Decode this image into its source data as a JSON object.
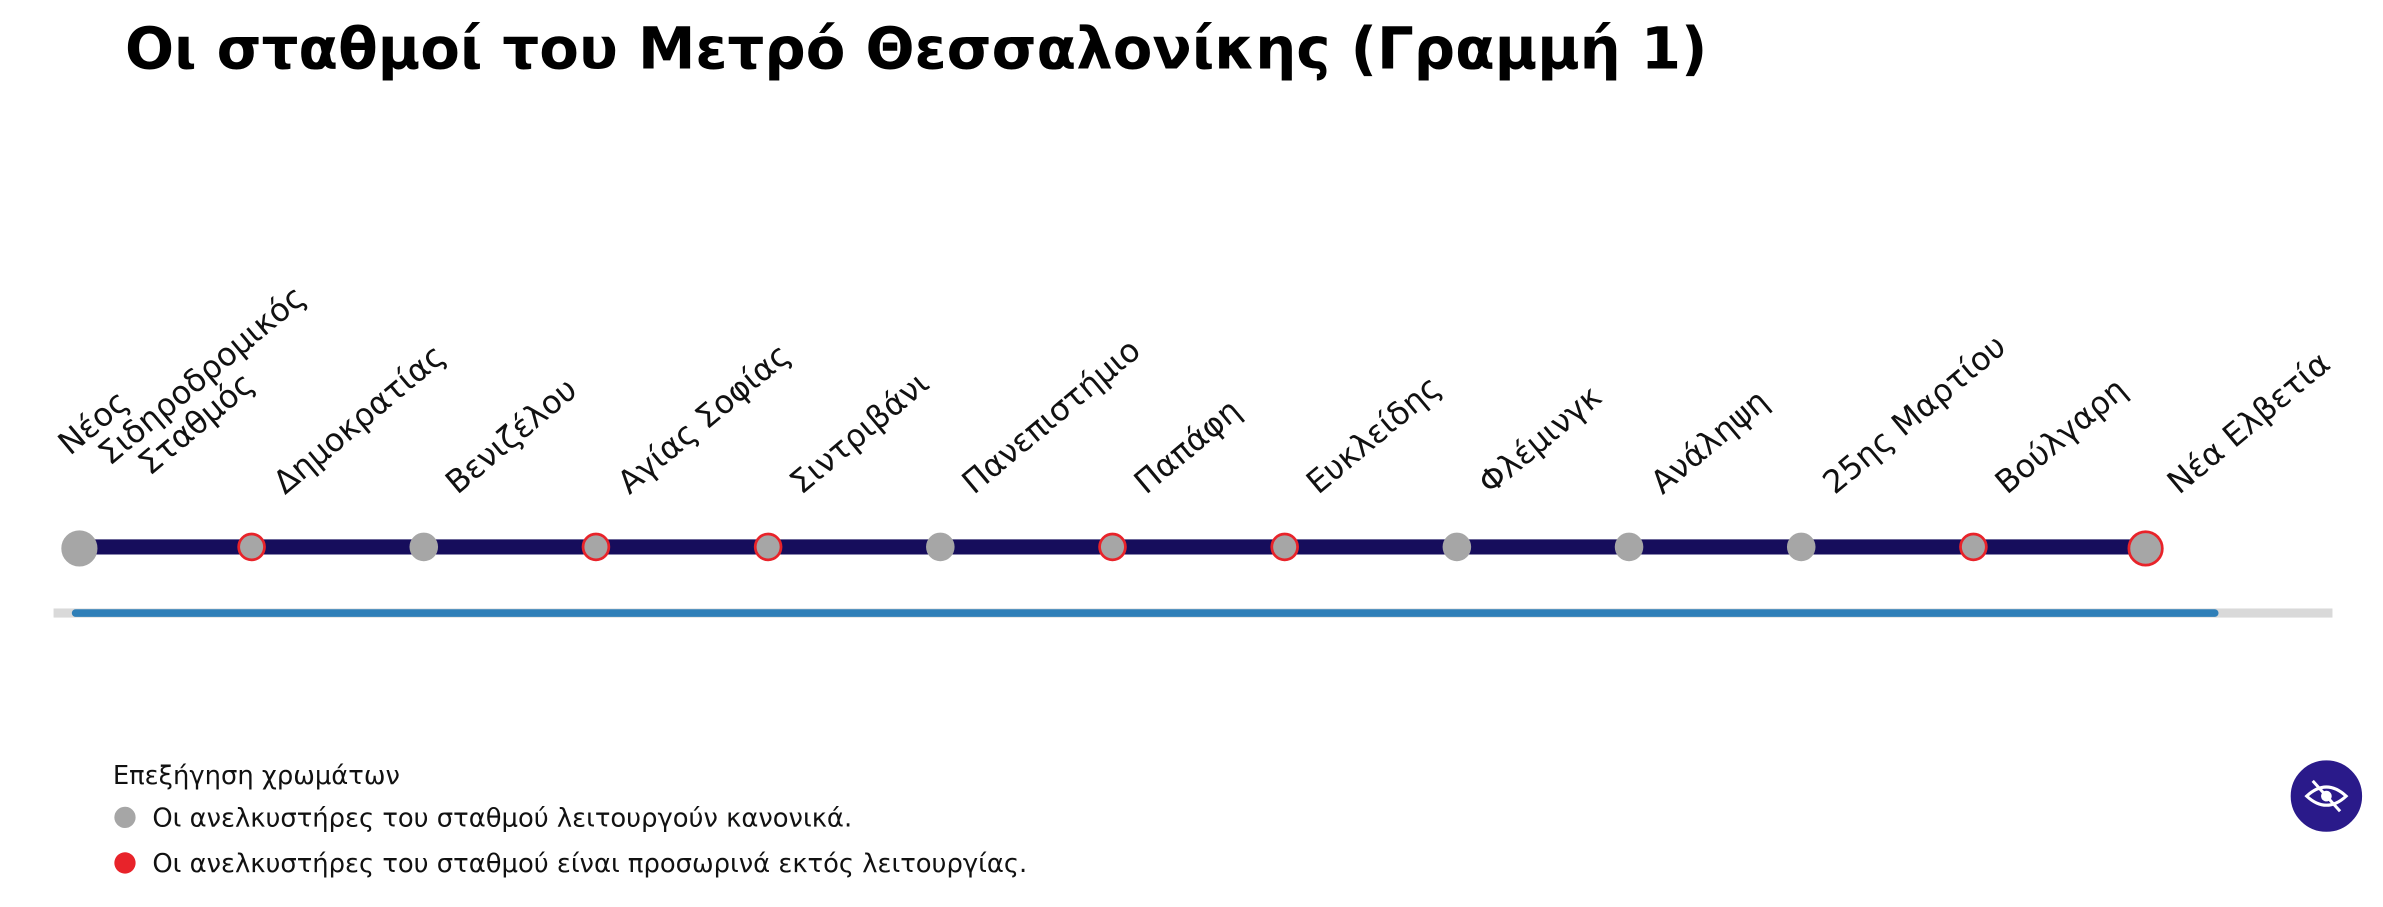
{
  "title": "Οι σταθμοί του Μετρό Θεσσαλονίκης (Γραμμή 1)",
  "stations": [
    {
      "name": [
        "Νέος",
        "Σιδηροδρομικός",
        "Σταθμός"
      ],
      "color": "#a6a6a6"
    },
    {
      "name": "Δημοκρατίας",
      "color": "#e8232a"
    },
    {
      "name": "Βενιζέλου",
      "color": "#a6a6a6"
    },
    {
      "name": "Αγίας Σοφίας",
      "color": "#e8232a"
    },
    {
      "name": "Σιντριβάνι",
      "color": "#e8232a"
    },
    {
      "name": "Πανεπιστήμιο",
      "color": "#a6a6a6"
    },
    {
      "name": "Παπάφη",
      "color": "#e8232a"
    },
    {
      "name": "Ευκλείδης",
      "color": "#e8232a"
    },
    {
      "name": "Φλέμινγκ",
      "color": "#a6a6a6"
    },
    {
      "name": "Ανάληψη",
      "color": "#a6a6a6"
    },
    {
      "name": "25ης Μαρτίου",
      "color": "#a6a6a6"
    },
    {
      "name": "Βούλγαρη",
      "color": "#e8232a"
    },
    {
      "name": "Νέα Ελβετία",
      "color": "#e8232a"
    }
  ],
  "legend": {
    "title": "Επεξήγηση χρωμάτων",
    "items": [
      {
        "label": "Οι ανελκυστήρες του σταθμού λειτουργούν κανονικά.",
        "color": "#a6a6a6"
      },
      {
        "label": "Οι ανελκυστήρες του σταθμού είναι προσωρινά εκτός λειτουργίας.",
        "color": "#e8232a"
      }
    ]
  }
}
